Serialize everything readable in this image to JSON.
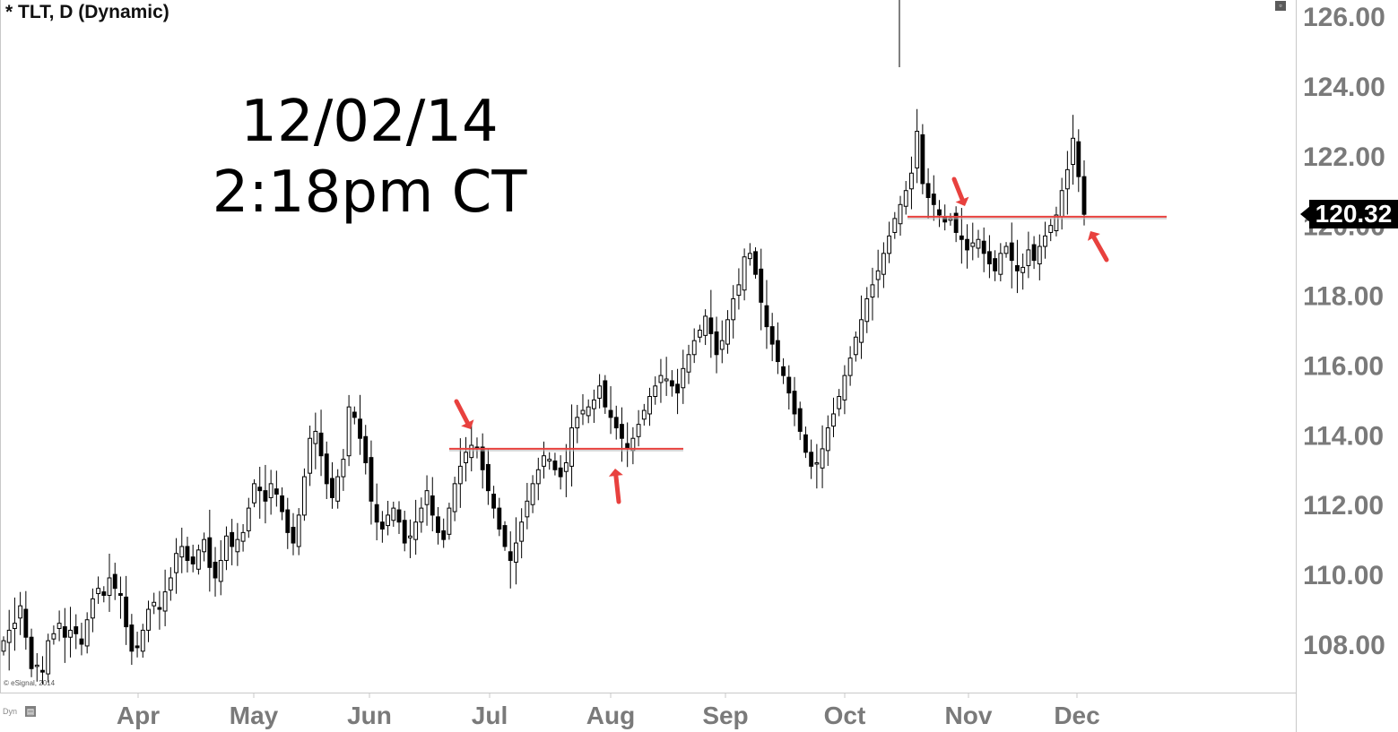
{
  "header": {
    "title": "* TLT, D (Dynamic)",
    "copyright": "© eSignal, 2014",
    "dyn_label": "Dyn",
    "dyn_icon": "chart-icon",
    "corner_icon": "window-icon"
  },
  "annotation": {
    "date": "12/02/14",
    "time": "2:18pm CT"
  },
  "colors": {
    "background": "#ffffff",
    "candle": "#000000",
    "line": "#e8413e",
    "arrow": "#e8413e",
    "axis_text": "#7a7a7a"
  },
  "chart_data": {
    "type": "candlestick",
    "symbol": "TLT",
    "interval": "D",
    "ylim": [
      106.5,
      126.5
    ],
    "y_ticks": [
      "126.00",
      "124.00",
      "122.00",
      "120.00",
      "118.00",
      "116.00",
      "114.00",
      "112.00",
      "110.00",
      "108.00"
    ],
    "y_tick_values": [
      126,
      124,
      122,
      120,
      118,
      116,
      114,
      112,
      110,
      108
    ],
    "x_ticks": [
      "Apr",
      "May",
      "Jun",
      "Jul",
      "Aug",
      "Sep",
      "Oct",
      "Nov",
      "Dec"
    ],
    "last_price": "120.32",
    "horizontal_lines": [
      {
        "value": 113.6,
        "from": "Jun",
        "to": "Aug"
      },
      {
        "value": 120.25,
        "from": "Oct",
        "to": "Dec"
      }
    ],
    "closes": [
      108.1,
      108.4,
      108.6,
      109.1,
      108.2,
      107.3,
      107.4,
      107.2,
      108.1,
      108.3,
      108.6,
      108.2,
      108.4,
      108.3,
      108.0,
      108.7,
      109.3,
      109.6,
      109.4,
      109.9,
      109.6,
      109.4,
      108.5,
      107.8,
      107.9,
      108.4,
      109.0,
      109.2,
      109.0,
      109.5,
      109.9,
      110.6,
      110.8,
      110.4,
      110.3,
      110.7,
      111.0,
      110.2,
      109.9,
      110.4,
      111.1,
      110.8,
      111.0,
      111.2,
      111.9,
      112.6,
      112.4,
      112.1,
      112.6,
      112.3,
      111.8,
      111.2,
      110.9,
      111.7,
      112.8,
      113.9,
      114.1,
      113.4,
      112.6,
      112.2,
      112.8,
      113.3,
      114.8,
      114.5,
      113.9,
      113.2,
      112.1,
      111.5,
      111.3,
      111.7,
      111.9,
      111.5,
      110.9,
      111.1,
      111.5,
      111.9,
      112.4,
      111.7,
      111.2,
      111.0,
      111.9,
      112.6,
      113.1,
      113.5,
      113.7,
      113.6,
      113.0,
      112.4,
      111.9,
      111.3,
      110.8,
      110.4,
      110.9,
      111.5,
      112.1,
      112.6,
      113.0,
      113.4,
      113.3,
      113.0,
      112.8,
      113.2,
      114.2,
      114.5,
      114.7,
      114.8,
      115.0,
      115.4,
      114.8,
      114.5,
      114.2,
      113.9,
      113.6,
      113.9,
      114.3,
      114.7,
      115.1,
      115.4,
      115.7,
      115.6,
      115.4,
      115.2,
      115.9,
      116.3,
      116.7,
      117.0,
      117.4,
      116.9,
      116.3,
      116.7,
      117.3,
      117.9,
      118.3,
      119.1,
      119.2,
      118.6,
      117.8,
      117.1,
      116.6,
      116.1,
      115.7,
      115.2,
      114.6,
      114.1,
      113.5,
      113.1,
      113.2,
      113.6,
      114.2,
      114.6,
      115.1,
      115.7,
      116.2,
      116.8,
      117.3,
      117.9,
      118.3,
      118.7,
      119.2,
      119.7,
      120.2,
      120.6,
      121.0,
      121.5,
      122.7,
      121.2,
      120.8,
      120.6,
      120.3,
      120.1,
      120.2,
      119.8,
      119.6,
      119.3,
      119.5,
      119.6,
      119.2,
      118.9,
      118.7,
      119.2,
      119.4,
      119.0,
      118.7,
      118.8,
      119.3,
      119.0,
      119.4,
      119.7,
      120.0,
      120.3,
      121.0,
      121.6,
      122.5,
      121.4,
      120.32
    ]
  }
}
